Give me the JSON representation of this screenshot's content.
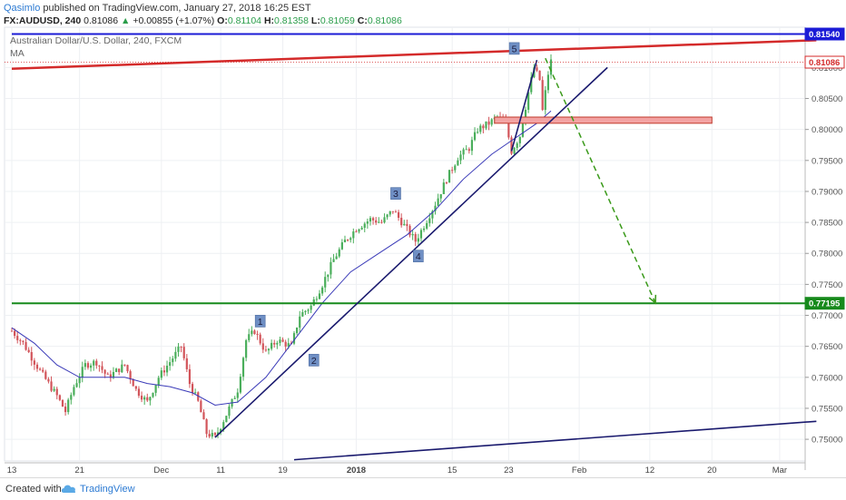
{
  "header": {
    "author": "Qasimlo",
    "published_text": "published on TradingView.com, January 27, 2018 16:25 EST",
    "symbol": "FX:AUDUSD, 240",
    "last": "0.81086",
    "change": "+0.00855 (+1.07%)",
    "o_label": "O:",
    "o_val": "0.81104",
    "h_label": "H:",
    "h_val": "0.81358",
    "l_label": "L:",
    "l_val": "0.81059",
    "c_label": "C:",
    "c_val": "0.81086"
  },
  "footer": {
    "created_with": "Created with",
    "brand": "TradingView",
    "logo_icon": "tradingview-cloud-icon"
  },
  "chart_data": {
    "type": "candlestick",
    "overlay_title": "Australian Dollar/U.S. Dollar, 240, FXCM",
    "overlay_indicator": "MA",
    "y_range": [
      0.7465,
      0.8165
    ],
    "y_ticks": [
      0.75,
      0.755,
      0.76,
      0.765,
      0.77,
      0.775,
      0.78,
      0.785,
      0.79,
      0.795,
      0.8,
      0.805,
      0.81
    ],
    "y_tick_labels": [
      "0.75000",
      "0.75500",
      "0.76000",
      "0.76500",
      "0.77000",
      "0.77500",
      "0.78000",
      "0.78500",
      "0.79000",
      "0.79500",
      "0.80000",
      "0.80500",
      "0.81000"
    ],
    "x_labels": [
      {
        "label": "13",
        "bar": 0
      },
      {
        "label": "21",
        "bar": 24
      },
      {
        "label": "Dec",
        "bar": 53
      },
      {
        "label": "11",
        "bar": 74
      },
      {
        "label": "19",
        "bar": 96
      },
      {
        "label": "2018",
        "bar": 122
      },
      {
        "label": "15",
        "bar": 156
      },
      {
        "label": "23",
        "bar": 176
      },
      {
        "label": "Feb",
        "bar": 201
      },
      {
        "label": "12",
        "bar": 226
      },
      {
        "label": "20",
        "bar": 248
      },
      {
        "label": "Mar",
        "bar": 272
      }
    ],
    "waypoints": [
      [
        0,
        0.7675
      ],
      [
        4,
        0.7655
      ],
      [
        10,
        0.761
      ],
      [
        16,
        0.757
      ],
      [
        19,
        0.7545
      ],
      [
        22,
        0.7585
      ],
      [
        26,
        0.762
      ],
      [
        30,
        0.7625
      ],
      [
        34,
        0.76
      ],
      [
        40,
        0.762
      ],
      [
        44,
        0.758
      ],
      [
        48,
        0.756
      ],
      [
        52,
        0.76
      ],
      [
        56,
        0.7625
      ],
      [
        60,
        0.765
      ],
      [
        63,
        0.759
      ],
      [
        66,
        0.756
      ],
      [
        69,
        0.751
      ],
      [
        72,
        0.7503
      ],
      [
        76,
        0.754
      ],
      [
        80,
        0.758
      ],
      [
        83,
        0.766
      ],
      [
        86,
        0.7675
      ],
      [
        90,
        0.764
      ],
      [
        94,
        0.766
      ],
      [
        99,
        0.765
      ],
      [
        102,
        0.77
      ],
      [
        106,
        0.7715
      ],
      [
        110,
        0.775
      ],
      [
        114,
        0.779
      ],
      [
        118,
        0.782
      ],
      [
        122,
        0.784
      ],
      [
        127,
        0.7855
      ],
      [
        131,
        0.785
      ],
      [
        135,
        0.787
      ],
      [
        139,
        0.7845
      ],
      [
        143,
        0.782
      ],
      [
        146,
        0.7845
      ],
      [
        150,
        0.788
      ],
      [
        154,
        0.792
      ],
      [
        158,
        0.7955
      ],
      [
        162,
        0.797
      ],
      [
        165,
        0.8
      ],
      [
        169,
        0.801
      ],
      [
        172,
        0.802
      ],
      [
        175,
        0.801
      ],
      [
        177,
        0.7965
      ],
      [
        180,
        0.799
      ],
      [
        183,
        0.806
      ],
      [
        185,
        0.81
      ],
      [
        187,
        0.808
      ],
      [
        188,
        0.803
      ],
      [
        190,
        0.809
      ],
      [
        191,
        0.811
      ]
    ],
    "last_bar": 191,
    "ma_points": [
      [
        0,
        0.768
      ],
      [
        8,
        0.7655
      ],
      [
        16,
        0.762
      ],
      [
        24,
        0.76
      ],
      [
        32,
        0.76
      ],
      [
        40,
        0.76
      ],
      [
        48,
        0.759
      ],
      [
        56,
        0.7585
      ],
      [
        64,
        0.7575
      ],
      [
        72,
        0.7555
      ],
      [
        80,
        0.756
      ],
      [
        90,
        0.76
      ],
      [
        100,
        0.766
      ],
      [
        110,
        0.772
      ],
      [
        120,
        0.777
      ],
      [
        130,
        0.78
      ],
      [
        140,
        0.783
      ],
      [
        150,
        0.787
      ],
      [
        160,
        0.792
      ],
      [
        170,
        0.796
      ],
      [
        178,
        0.7985
      ],
      [
        186,
        0.801
      ],
      [
        191,
        0.803
      ]
    ],
    "lines": [
      {
        "name": "resistance-red-line",
        "color": "#d42a2a",
        "width": 2.5,
        "from": [
          0,
          0.8098
        ],
        "to": [
          285,
          0.8144
        ]
      },
      {
        "name": "horizontal-blue-line",
        "color": "#1b1bd6",
        "width": 2,
        "from": [
          0,
          0.8154
        ],
        "to": [
          285,
          0.8154
        ],
        "label": "0.81540"
      },
      {
        "name": "horizontal-green-line",
        "color": "#178a1c",
        "width": 2,
        "from": [
          0,
          0.77195
        ],
        "to": [
          285,
          0.77195
        ],
        "label": "0.77195"
      },
      {
        "name": "trendline-main",
        "color": "#1a1a6e",
        "width": 1.6,
        "from": [
          72,
          0.7503
        ],
        "to": [
          211,
          0.81
        ]
      },
      {
        "name": "trendline-steep",
        "color": "#1a1a6e",
        "width": 1.6,
        "from": [
          177,
          0.7965
        ],
        "to": [
          186,
          0.8112
        ]
      },
      {
        "name": "trendline-lower",
        "color": "#1a1a6e",
        "width": 1.6,
        "from": [
          100,
          0.7467
        ],
        "to": [
          285,
          0.7529
        ]
      }
    ],
    "zone": {
      "from_bar": 171,
      "to_bar": 248,
      "low": 0.801,
      "high": 0.802,
      "color": "#f3a3a3"
    },
    "projection": {
      "color": "#3a9a1a",
      "points": [
        [
          189,
          0.8115
        ],
        [
          228,
          0.772
        ]
      ]
    },
    "waves": [
      {
        "label": "1",
        "bar": 88,
        "price": 0.769
      },
      {
        "label": "2",
        "bar": 107,
        "price": 0.7627
      },
      {
        "label": "3",
        "bar": 136,
        "price": 0.7896
      },
      {
        "label": "4",
        "bar": 144,
        "price": 0.7795
      },
      {
        "label": "5",
        "bar": 178,
        "price": 0.813
      }
    ],
    "price_labels": [
      {
        "value": "0.81540",
        "price": 0.8154,
        "bg": "#1b1bd6",
        "fg": "#ffffff"
      },
      {
        "value": "0.81086",
        "price": 0.81086,
        "bg": "#ffffff",
        "fg": "#d42a2a",
        "border": "#d42a2a"
      },
      {
        "value": "0.77195",
        "price": 0.77195,
        "bg": "#178a1c",
        "fg": "#ffffff"
      }
    ],
    "colors": {
      "up": "#4aae5b",
      "down": "#d2545a",
      "ma": "#3a3ab8",
      "grid": "#eef0f3",
      "axis": "#555555"
    }
  }
}
